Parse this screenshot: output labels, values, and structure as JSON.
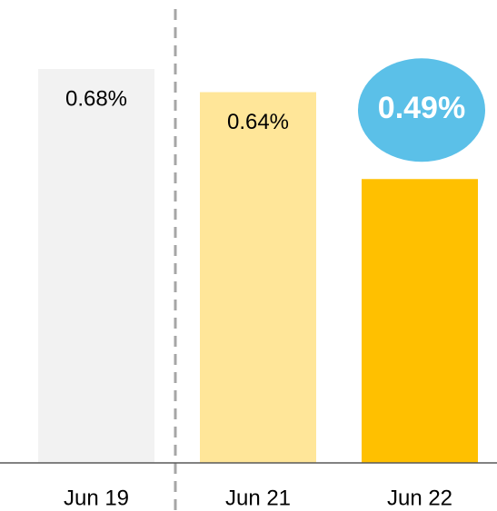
{
  "chart_data": {
    "type": "bar",
    "categories": [
      "Jun 19",
      "Jun 21",
      "Jun 22"
    ],
    "values": [
      0.68,
      0.64,
      0.49
    ],
    "value_labels": [
      "0.68%",
      "0.64%",
      "0.49%"
    ],
    "colors": [
      "#f2f2f2",
      "#ffe699",
      "#ffc000"
    ]
  }
}
